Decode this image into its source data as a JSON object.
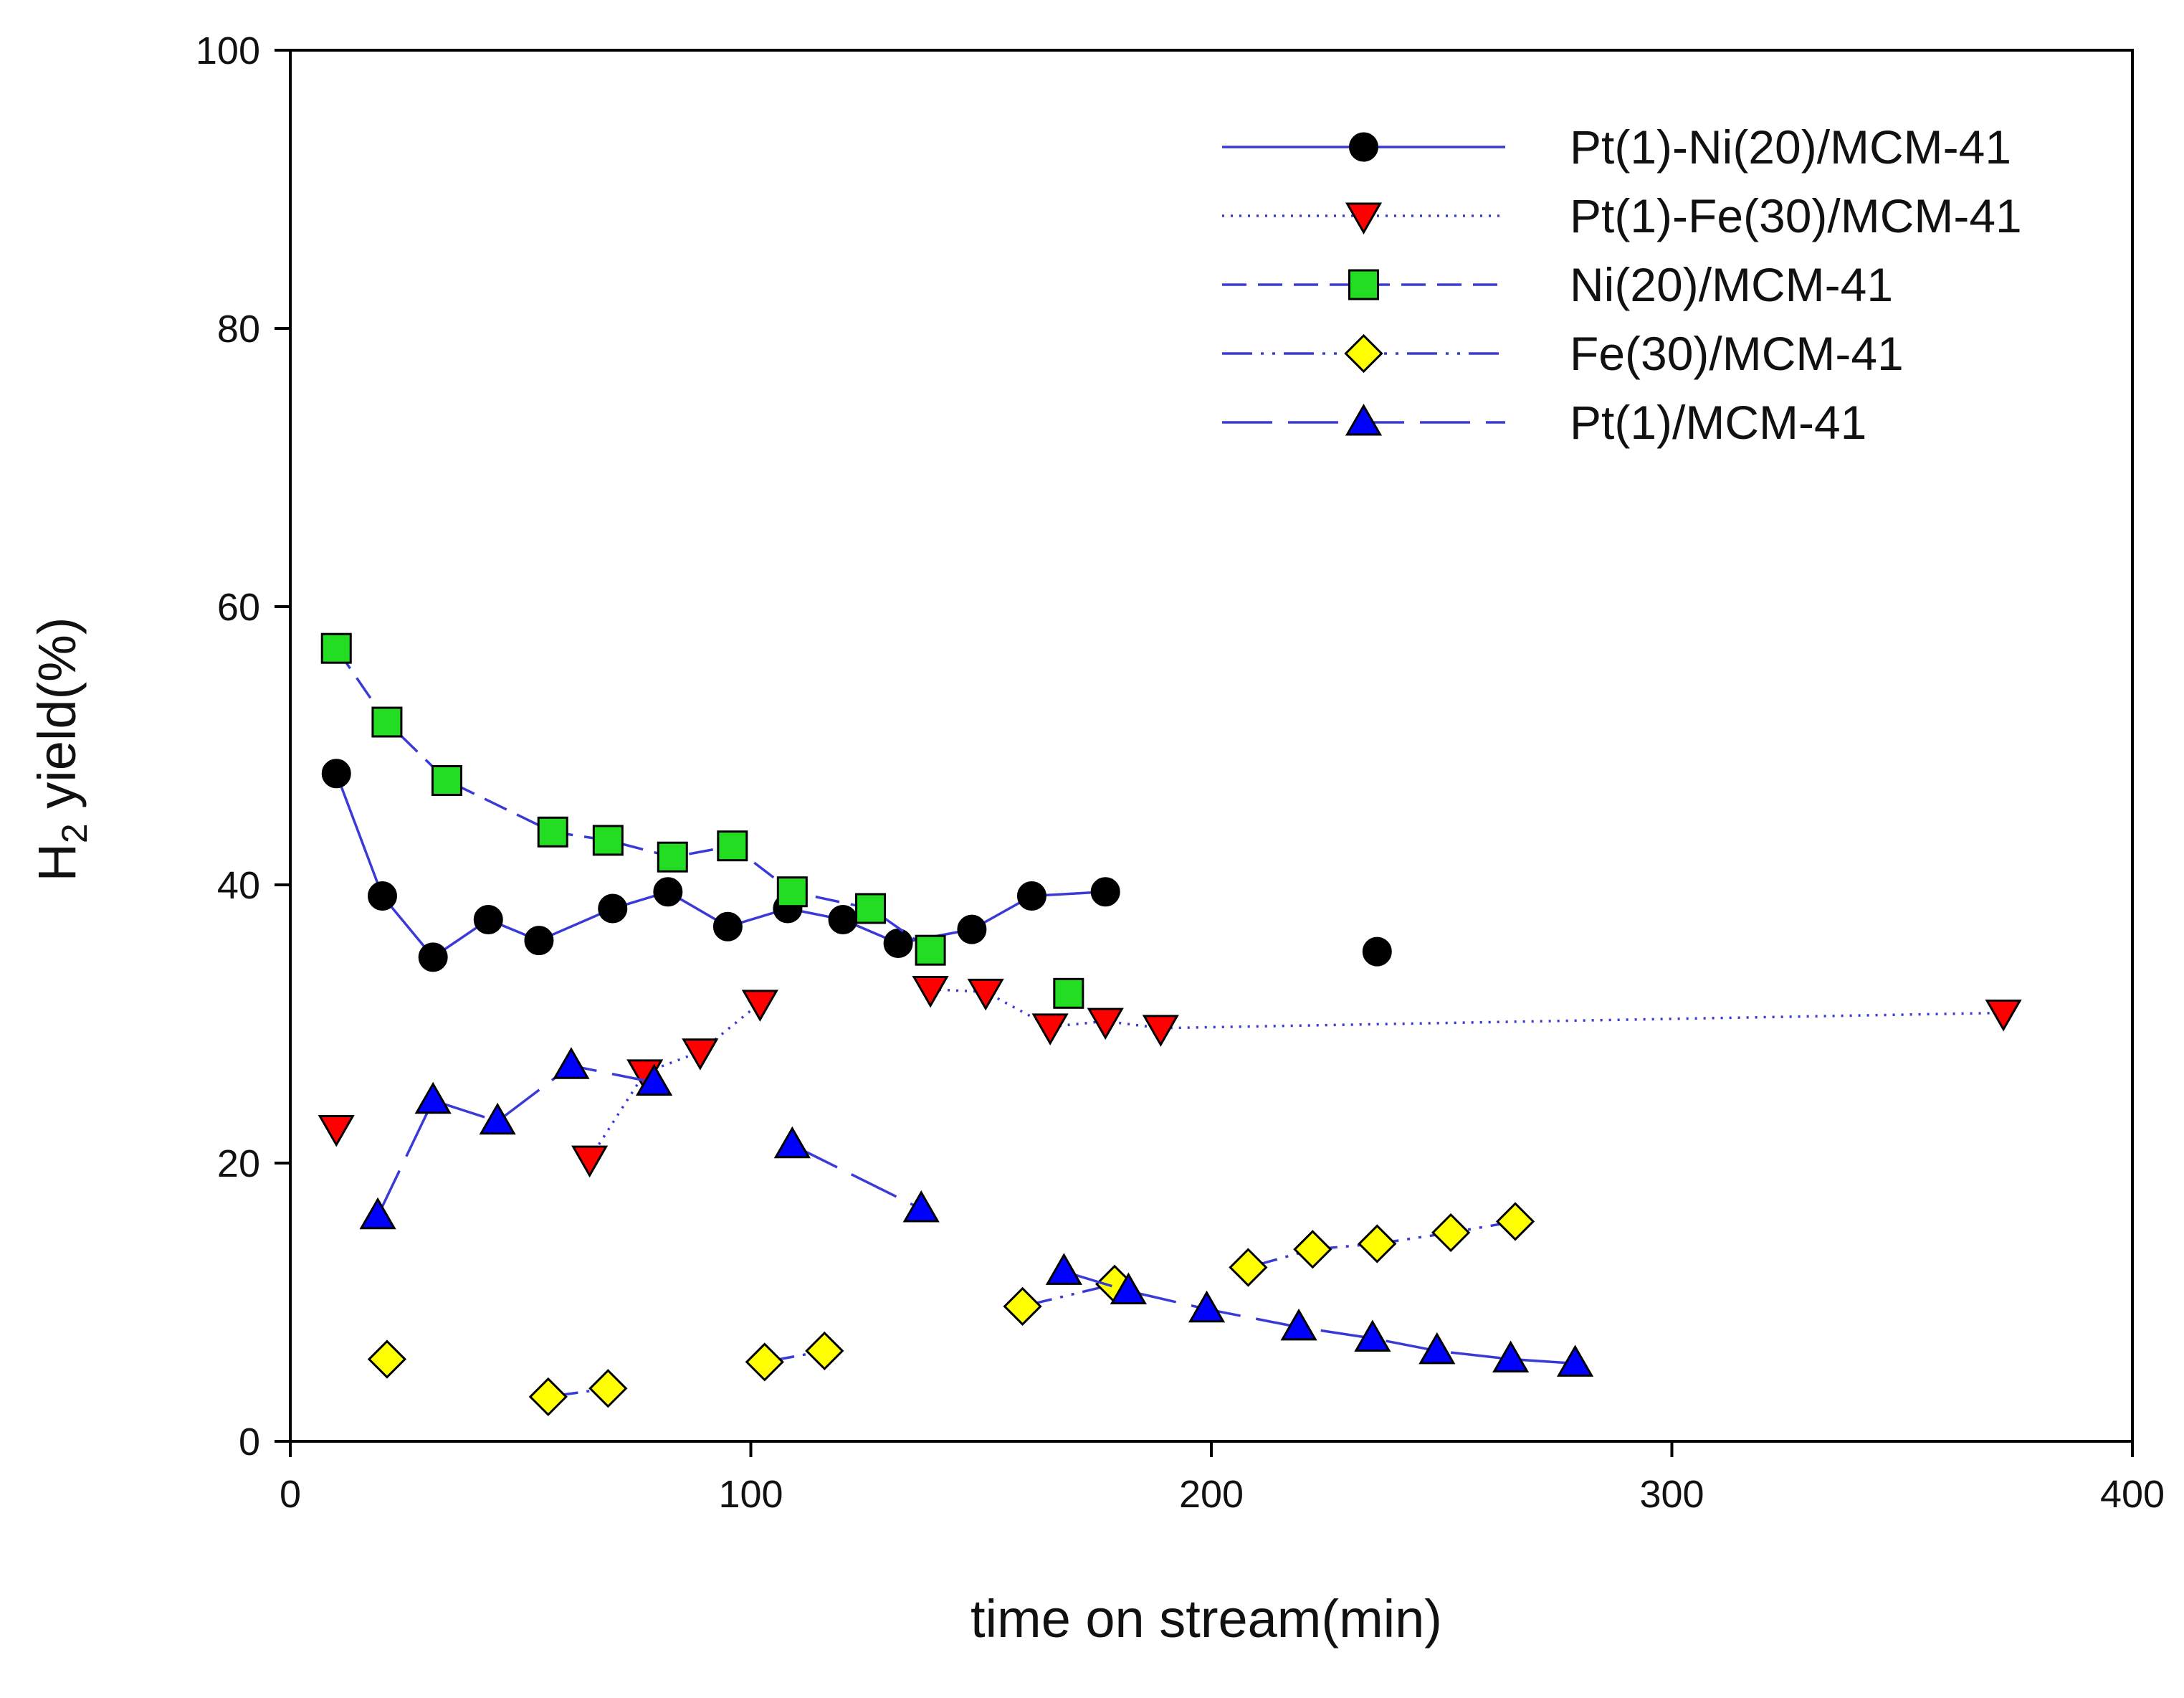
{
  "chart_data": {
    "type": "line",
    "title": "",
    "xlabel": "time on stream(min)",
    "ylabel": {
      "main": "H",
      "sub": "2",
      "rest": " yield(%)"
    },
    "xlim": [
      0,
      400
    ],
    "ylim": [
      0,
      100
    ],
    "xticks": [
      0,
      100,
      200,
      300,
      400
    ],
    "yticks": [
      0,
      20,
      40,
      60,
      80,
      100
    ],
    "grid": false,
    "legend_position": "top-right",
    "series": [
      {
        "name": "Pt(1)-Ni(20)/MCM-41",
        "marker": "circle",
        "marker_color": "#000000",
        "line_style": "solid",
        "line_color": "#3a3ad8",
        "segments": [
          [
            [
              10,
              48
            ],
            [
              20,
              39.2
            ],
            [
              31,
              34.8
            ],
            [
              43,
              37.5
            ],
            [
              54,
              36
            ],
            [
              70,
              38.3
            ],
            [
              82,
              39.5
            ],
            [
              95,
              37
            ],
            [
              108,
              38.3
            ],
            [
              120,
              37.5
            ],
            [
              132,
              35.8
            ],
            [
              148,
              36.8
            ],
            [
              161,
              39.2
            ],
            [
              177,
              39.5
            ]
          ],
          [
            [
              236,
              35.2
            ]
          ]
        ]
      },
      {
        "name": "Pt(1)-Fe(30)/MCM-41",
        "marker": "triangle-down",
        "marker_color": "#ff0000",
        "line_style": "dotted",
        "line_color": "#3a3ad8",
        "segments": [
          [
            [
              10,
              22.5
            ]
          ],
          [
            [
              65,
              20.3
            ],
            [
              77,
              26.5
            ],
            [
              89,
              28
            ],
            [
              102,
              31.5
            ]
          ],
          [
            [
              139,
              32.5
            ],
            [
              151,
              32.3
            ],
            [
              165,
              29.8
            ],
            [
              177,
              30.2
            ],
            [
              189,
              29.7
            ],
            [
              372,
              30.8
            ]
          ]
        ]
      },
      {
        "name": "Ni(20)/MCM-41",
        "marker": "square",
        "marker_color": "#22dd22",
        "line_style": "dashed",
        "line_color": "#3a3ad8",
        "segments": [
          [
            [
              10,
              57
            ],
            [
              21,
              51.7
            ],
            [
              34,
              47.5
            ],
            [
              57,
              43.8
            ],
            [
              69,
              43.2
            ],
            [
              83,
              42
            ],
            [
              96,
              42.8
            ],
            [
              109,
              39.5
            ],
            [
              126,
              38.3
            ],
            [
              139,
              35.3
            ]
          ],
          [
            [
              169,
              32.2
            ]
          ]
        ]
      },
      {
        "name": "Fe(30)/MCM-41",
        "marker": "diamond",
        "marker_color": "#ffff00",
        "line_style": "dash-dot-dot",
        "line_color": "#3a3ad8",
        "segments": [
          [
            [
              21,
              5.9
            ]
          ],
          [
            [
              56,
              3.2
            ],
            [
              69,
              3.8
            ]
          ],
          [
            [
              103,
              5.7
            ],
            [
              116,
              6.5
            ]
          ],
          [
            [
              159,
              9.7
            ],
            [
              179,
              11.3
            ]
          ],
          [
            [
              208,
              12.5
            ],
            [
              222,
              13.8
            ],
            [
              236,
              14.2
            ],
            [
              252,
              15
            ],
            [
              266,
              15.8
            ]
          ]
        ]
      },
      {
        "name": "Pt(1)/MCM-41",
        "marker": "triangle-up",
        "marker_color": "#0000ff",
        "line_style": "long-dash",
        "line_color": "#3a3ad8",
        "segments": [
          [
            [
              19,
              16.2
            ],
            [
              31,
              24.5
            ],
            [
              45,
              23
            ],
            [
              61,
              27
            ],
            [
              79,
              25.8
            ]
          ],
          [
            [
              109,
              21.3
            ],
            [
              137,
              16.7
            ]
          ],
          [
            [
              168,
              12.2
            ],
            [
              182,
              10.8
            ],
            [
              199,
              9.5
            ],
            [
              219,
              8.2
            ],
            [
              235,
              7.4
            ],
            [
              249,
              6.5
            ],
            [
              265,
              5.9
            ],
            [
              279,
              5.6
            ]
          ]
        ]
      }
    ]
  }
}
